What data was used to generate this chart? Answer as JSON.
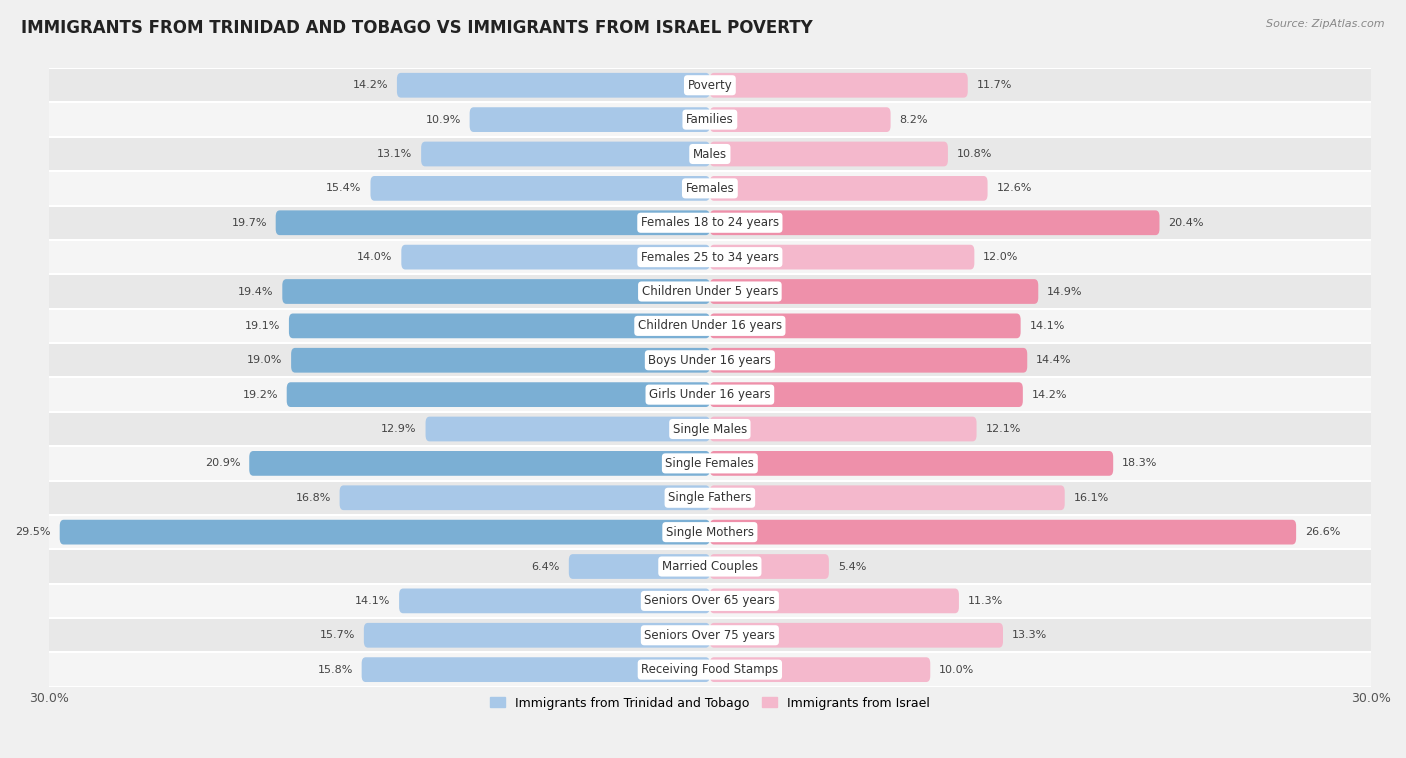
{
  "title": "IMMIGRANTS FROM TRINIDAD AND TOBAGO VS IMMIGRANTS FROM ISRAEL POVERTY",
  "source": "Source: ZipAtlas.com",
  "categories": [
    "Poverty",
    "Families",
    "Males",
    "Females",
    "Females 18 to 24 years",
    "Females 25 to 34 years",
    "Children Under 5 years",
    "Children Under 16 years",
    "Boys Under 16 years",
    "Girls Under 16 years",
    "Single Males",
    "Single Females",
    "Single Fathers",
    "Single Mothers",
    "Married Couples",
    "Seniors Over 65 years",
    "Seniors Over 75 years",
    "Receiving Food Stamps"
  ],
  "left_values": [
    14.2,
    10.9,
    13.1,
    15.4,
    19.7,
    14.0,
    19.4,
    19.1,
    19.0,
    19.2,
    12.9,
    20.9,
    16.8,
    29.5,
    6.4,
    14.1,
    15.7,
    15.8
  ],
  "right_values": [
    11.7,
    8.2,
    10.8,
    12.6,
    20.4,
    12.0,
    14.9,
    14.1,
    14.4,
    14.2,
    12.1,
    18.3,
    16.1,
    26.6,
    5.4,
    11.3,
    13.3,
    10.0
  ],
  "left_color_normal": "#a8c8e8",
  "right_color_normal": "#f4b8cc",
  "left_color_highlight": "#7bafd4",
  "right_color_highlight": "#ee90aa",
  "left_label": "Immigrants from Trinidad and Tobago",
  "right_label": "Immigrants from Israel",
  "highlight_rows": [
    4,
    6,
    7,
    8,
    9,
    11,
    13
  ],
  "xlim": 30.0,
  "bg_color": "#f0f0f0",
  "row_bg_even": "#e8e8e8",
  "row_bg_odd": "#f5f5f5",
  "title_fontsize": 12,
  "cat_fontsize": 8.5,
  "value_fontsize": 8,
  "axis_fontsize": 9,
  "legend_fontsize": 9
}
